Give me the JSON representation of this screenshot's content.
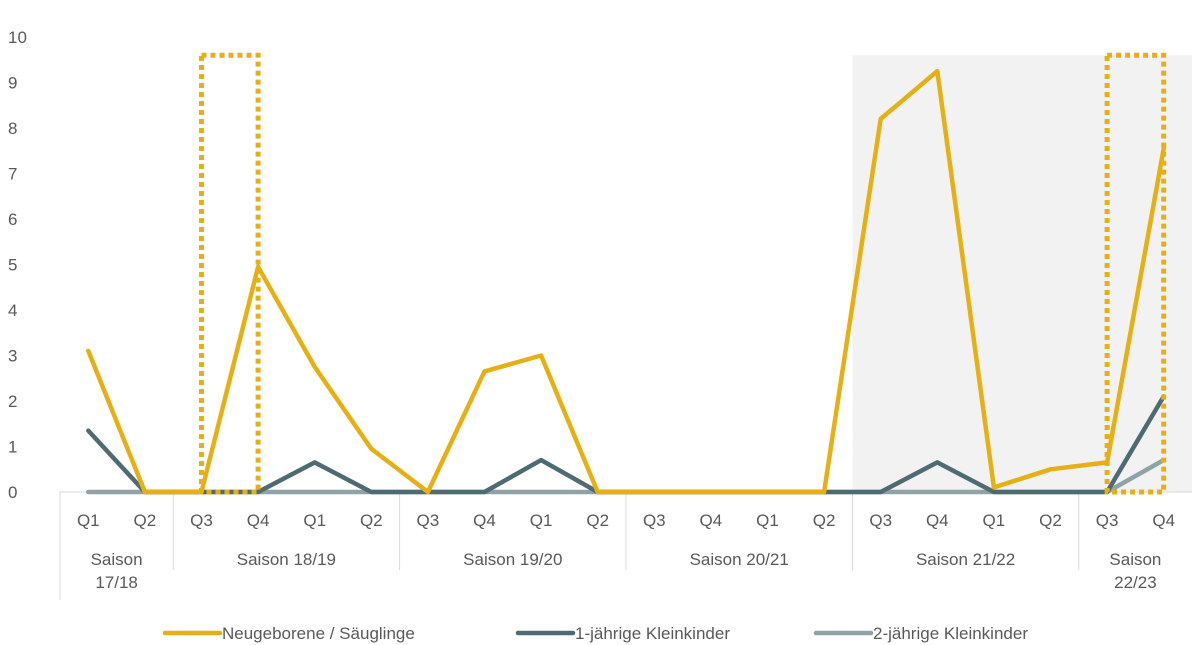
{
  "chart_data": {
    "type": "line",
    "title": "",
    "xlabel": "",
    "ylabel": "",
    "ylim": [
      0,
      10
    ],
    "yticks": [
      "0",
      "1",
      "2",
      "3",
      "4",
      "5",
      "6",
      "7",
      "8",
      "9",
      "10"
    ],
    "grid": false,
    "legend_position": "bottom",
    "categories": [
      "Q1",
      "Q2",
      "Q3",
      "Q4",
      "Q1",
      "Q2",
      "Q3",
      "Q4",
      "Q1",
      "Q2",
      "Q3",
      "Q4",
      "Q1",
      "Q2",
      "Q3",
      "Q4",
      "Q1",
      "Q2",
      "Q3",
      "Q4"
    ],
    "seasons": [
      {
        "label": [
          "Saison",
          "17/18"
        ],
        "count": 2
      },
      {
        "label": [
          "Saison 18/19"
        ],
        "count": 4
      },
      {
        "label": [
          "Saison 19/20"
        ],
        "count": 4
      },
      {
        "label": [
          "Saison 20/21"
        ],
        "count": 4
      },
      {
        "label": [
          "Saison 21/22"
        ],
        "count": 4
      },
      {
        "label": [
          "Saison",
          "22/23"
        ],
        "count": 2
      }
    ],
    "series": [
      {
        "name": "Neugeborene / Säuglinge",
        "color": "#E6AF14",
        "values": [
          3.1,
          0,
          0,
          4.95,
          2.75,
          0.95,
          0,
          2.65,
          3.0,
          0,
          0,
          0,
          0,
          0,
          8.2,
          9.25,
          0.1,
          0.5,
          0.65,
          7.55
        ]
      },
      {
        "name": "1-jährige Kleinkinder",
        "color": "#4E6B73",
        "values": [
          1.35,
          0,
          0,
          0,
          0.65,
          0,
          0,
          0,
          0.7,
          0,
          0,
          0,
          0,
          0,
          0,
          0.65,
          0,
          0,
          0,
          2.1
        ]
      },
      {
        "name": "2-jährige Kleinkinder",
        "color": "#8FA3A6",
        "values": [
          0,
          0,
          0,
          0,
          0,
          0,
          0,
          0,
          0,
          0,
          0,
          0,
          0,
          0,
          0,
          0,
          0,
          0,
          0,
          0.7
        ]
      }
    ],
    "shaded_region": {
      "from_index": 14,
      "to_index": 19,
      "ymax": 9.6,
      "color": "#F2F2F2"
    },
    "highlight_boxes": [
      {
        "from_index": 2.5,
        "to_index": 3.5,
        "ymax": 9.6,
        "color": "#E6AF14"
      },
      {
        "from_index": 18.5,
        "to_index": 19.5,
        "ymax": 9.6,
        "color": "#E6AF14"
      }
    ]
  }
}
